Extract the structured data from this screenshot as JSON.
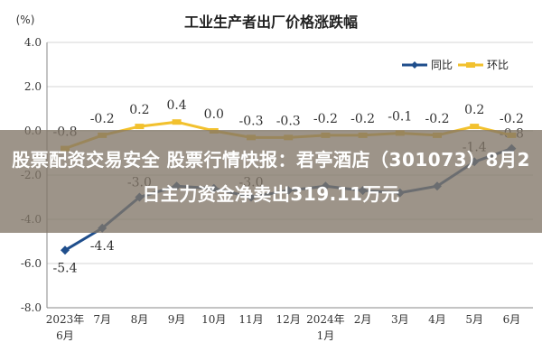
{
  "banner": {
    "headline": "股票配资交易安全 股票行情快报：君亭酒店（301073）8月2日主力资金净卖出319.11万元"
  },
  "chart_data": {
    "type": "line",
    "title": "工业生产者出厂价格涨跌幅",
    "unit_label": "(%)",
    "categories": [
      "2023年\n6月",
      "7月",
      "8月",
      "9月",
      "10月",
      "11月",
      "12月",
      "2024年\n1月",
      "2月",
      "3月",
      "4月",
      "5月",
      "6月"
    ],
    "series": [
      {
        "name": "同比",
        "color": "#1f4e8c",
        "values": [
          -5.4,
          -4.4,
          -3.0,
          -2.5,
          -2.6,
          -3.0,
          -2.7,
          -2.5,
          -2.7,
          -2.8,
          -2.5,
          -1.4,
          -0.8
        ],
        "labels": [
          "-5.4",
          "-4.4",
          "-3.0",
          "",
          "",
          "-3.0",
          "",
          "",
          "",
          "",
          "",
          "-1.4",
          "-0.8"
        ]
      },
      {
        "name": "环比",
        "color": "#f2c12e",
        "values": [
          -0.8,
          -0.2,
          0.2,
          0.4,
          0.0,
          -0.3,
          -0.3,
          -0.2,
          -0.2,
          -0.1,
          -0.2,
          0.2,
          -0.2
        ],
        "labels": [
          "-0.8",
          "-0.2",
          "0.2",
          "0.4",
          "0.0",
          "-0.3",
          "-0.3",
          "-0.2",
          "-0.2",
          "-0.1",
          "-0.2",
          "0.2",
          "-0.2"
        ]
      }
    ],
    "yticks": [
      "4.0",
      "2.0",
      "0.0",
      "-2.0",
      "-4.0",
      "-6.0",
      "-8.0"
    ],
    "ylim": [
      -8,
      4
    ],
    "grid": true,
    "legend_position": "top-right"
  }
}
